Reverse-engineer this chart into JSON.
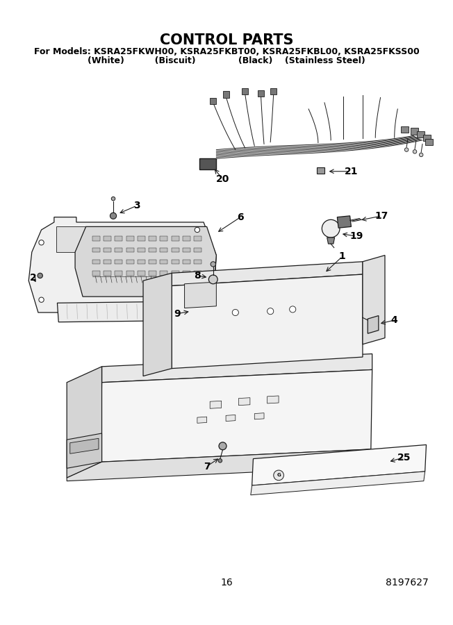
{
  "title": "CONTROL PARTS",
  "subtitle_line1": "For Models: KSRA25FKWH00, KSRA25FKBT00, KSRA25FKBL00, KSRA25FKSS00",
  "subtitle_line2": "          (White)              (Biscuit)               (Black)      (Stainless Steel)",
  "page_number": "16",
  "doc_number": "8197627",
  "bg_color": "#ffffff",
  "title_fontsize": 15,
  "subtitle_fontsize": 9,
  "footer_fontsize": 10,
  "fig_width": 6.52,
  "fig_height": 9.0
}
